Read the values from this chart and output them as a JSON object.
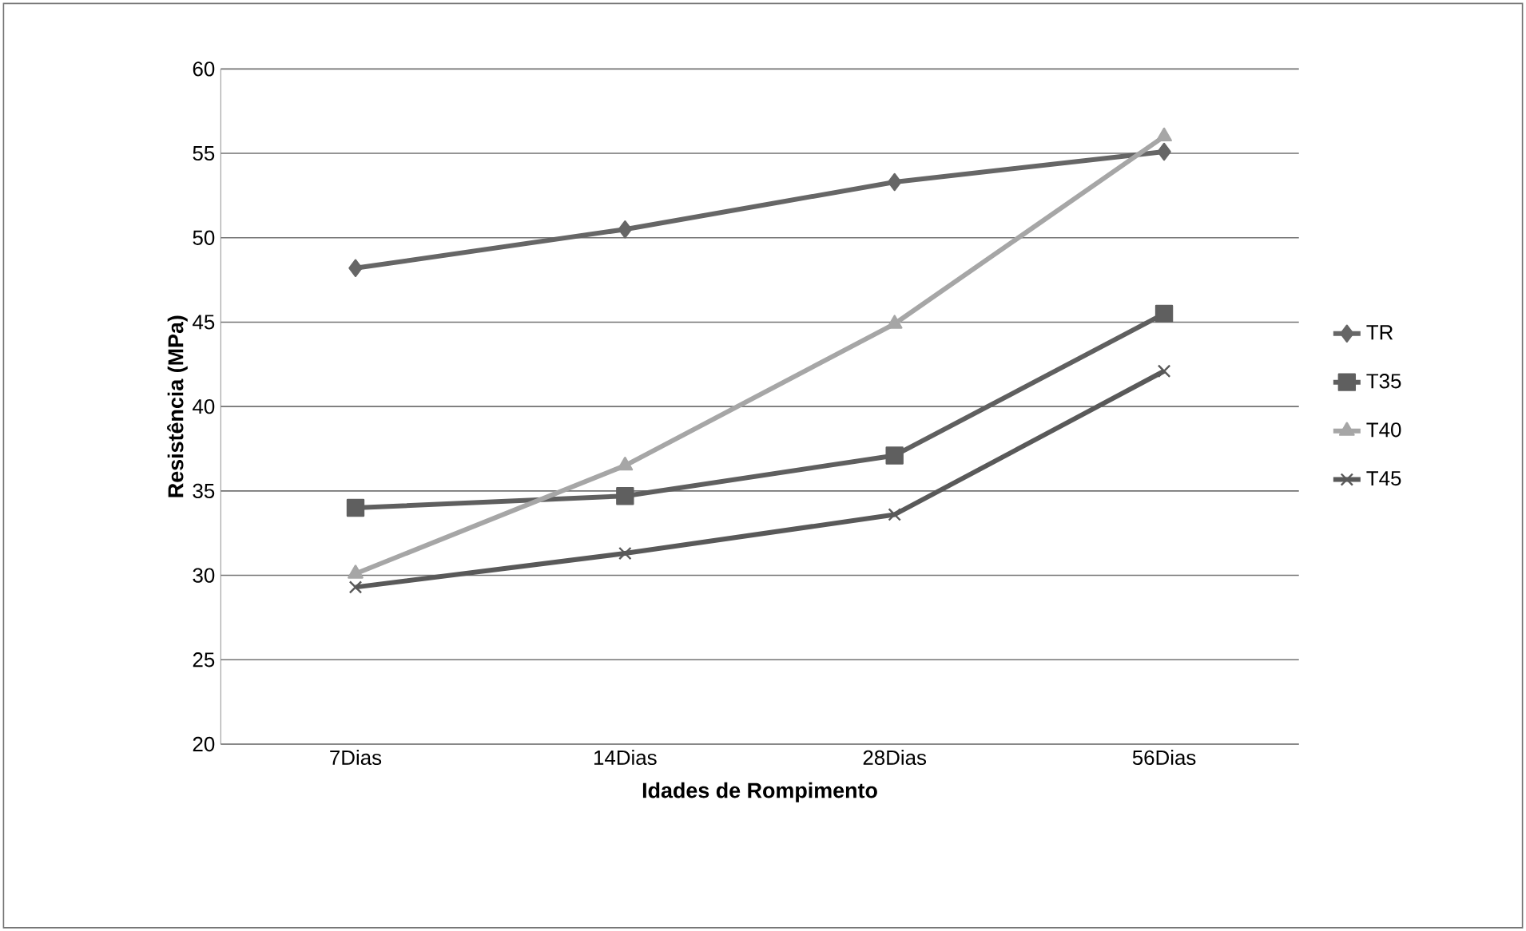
{
  "chart_data": {
    "type": "line",
    "xlabel": "Idades de Rompimento",
    "ylabel": "Resistência (MPa)",
    "categories": [
      "7Dias",
      "14Dias",
      "28Dias",
      "56Dias"
    ],
    "series": [
      {
        "name": "TR",
        "color": "#666666",
        "marker": "diamond",
        "values": [
          48.2,
          50.5,
          53.3,
          55.1
        ]
      },
      {
        "name": "T35",
        "color": "#5f5f5f",
        "marker": "square",
        "values": [
          34.0,
          34.7,
          37.1,
          45.5
        ]
      },
      {
        "name": "T40",
        "color": "#a6a6a6",
        "marker": "triangle",
        "values": [
          30.1,
          36.5,
          44.9,
          56.0
        ]
      },
      {
        "name": "T45",
        "color": "#595959",
        "marker": "cross",
        "values": [
          29.3,
          31.3,
          33.6,
          42.1
        ]
      }
    ],
    "ylim": [
      20,
      60
    ],
    "yticks": [
      20,
      25,
      30,
      35,
      40,
      45,
      50,
      55,
      60
    ],
    "grid": "y",
    "legend": "right"
  }
}
